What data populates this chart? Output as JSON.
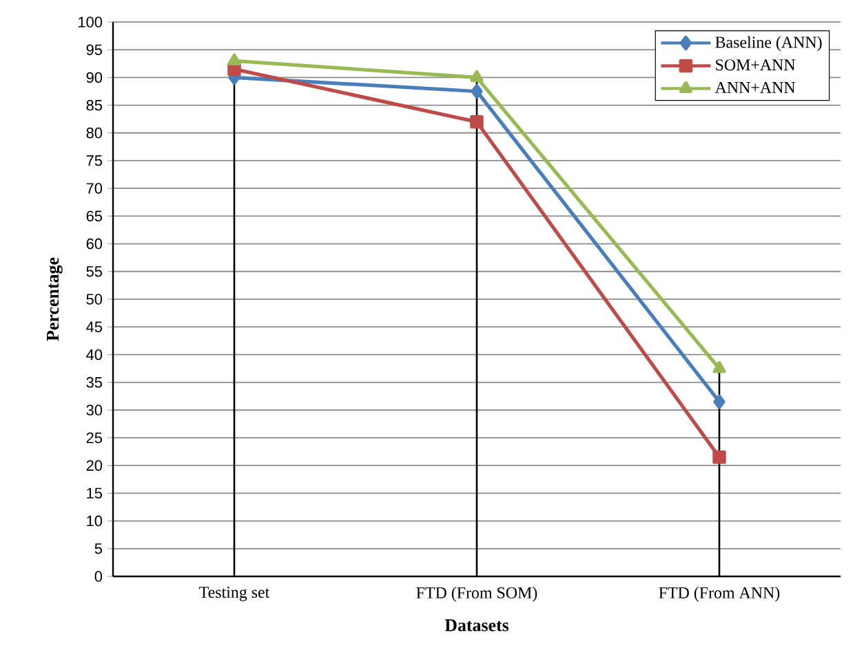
{
  "chart_data": {
    "type": "line",
    "xlabel": "Datasets",
    "ylabel": "Percentage",
    "categories": [
      "Testing set",
      "FTD (From SOM)",
      "FTD (From ANN)"
    ],
    "series": [
      {
        "name": "Baseline (ANN)",
        "color": "#4a7ebb",
        "marker": "diamond",
        "values": [
          90,
          87.5,
          31.5
        ]
      },
      {
        "name": "SOM+ANN",
        "color": "#be4b48",
        "marker": "square",
        "values": [
          91.5,
          82,
          21.5
        ]
      },
      {
        "name": "ANN+ANN",
        "color": "#98b954",
        "marker": "triangle",
        "values": [
          93,
          90,
          37.5
        ]
      }
    ],
    "ylim": [
      0,
      100
    ],
    "yticks": [
      0,
      5,
      10,
      15,
      20,
      25,
      30,
      35,
      40,
      45,
      50,
      55,
      60,
      65,
      70,
      75,
      80,
      85,
      90,
      95,
      100
    ],
    "grid": "y",
    "legend": "top right",
    "ref_lines": [
      {
        "axis": "x",
        "value": "Testing set",
        "color": "#000000"
      },
      {
        "axis": "x",
        "value": "FTD (From SOM)",
        "color": "#000000"
      },
      {
        "axis": "x",
        "value": "FTD (From ANN)",
        "color": "#000000"
      }
    ]
  }
}
